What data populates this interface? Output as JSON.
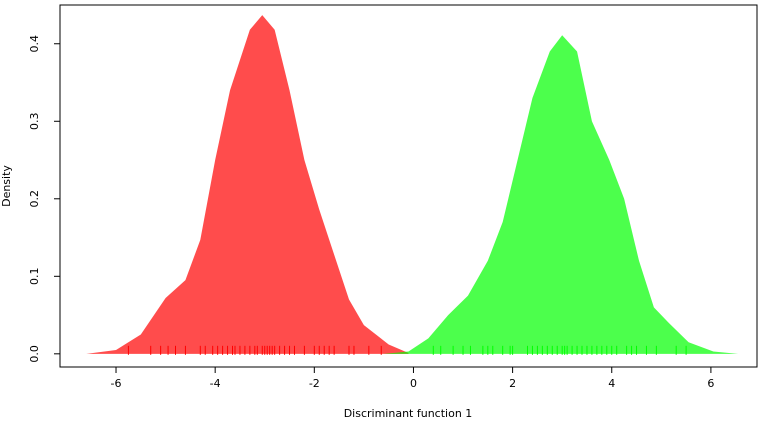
{
  "chart_data": {
    "type": "area",
    "xlabel": "Discriminant function 1",
    "ylabel": "Density",
    "xlim": [
      -7.13,
      6.93
    ],
    "ylim": [
      -0.017,
      0.45
    ],
    "xticks": [
      -6,
      -4,
      -2,
      0,
      2,
      4,
      6
    ],
    "yticks": [
      {
        "value": 0,
        "label": "0.0"
      },
      0.1,
      0.2,
      0.3,
      0.4
    ],
    "opacity": 0.7,
    "series": [
      {
        "color": "#ff0000",
        "x": [
          -6.6,
          -6.0,
          -5.5,
          -5.0,
          -4.6,
          -4.3,
          -4.0,
          -3.7,
          -3.3,
          -3.05,
          -2.8,
          -2.5,
          -2.2,
          -1.9,
          -1.6,
          -1.3,
          -1.0,
          -0.5,
          -0.1
        ],
        "values": [
          0.0,
          0.005,
          0.025,
          0.072,
          0.095,
          0.147,
          0.25,
          0.34,
          0.418,
          0.437,
          0.418,
          0.34,
          0.25,
          0.186,
          0.128,
          0.07,
          0.037,
          0.012,
          0.001
        ],
        "rug": [
          -5.75,
          -5.3,
          -5.1,
          -4.95,
          -4.8,
          -4.6,
          -4.3,
          -4.2,
          -4.05,
          -3.95,
          -3.85,
          -3.75,
          -3.65,
          -3.6,
          -3.5,
          -3.4,
          -3.3,
          -3.2,
          -3.15,
          -3.05,
          -3.0,
          -2.95,
          -2.9,
          -2.85,
          -2.8,
          -2.7,
          -2.6,
          -2.5,
          -2.4,
          -2.2,
          -2.0,
          -1.9,
          -1.8,
          -1.7,
          -1.6,
          -1.3,
          -1.2,
          -0.9,
          -0.65
        ]
      },
      {
        "color": "#00ff00",
        "x": [
          -0.6,
          -0.1,
          0.3,
          0.7,
          1.1,
          1.5,
          1.8,
          2.1,
          2.4,
          2.75,
          3.0,
          3.3,
          3.6,
          3.95,
          4.25,
          4.55,
          4.85,
          5.15,
          5.55,
          6.05,
          6.55
        ],
        "values": [
          0.0,
          0.003,
          0.02,
          0.05,
          0.075,
          0.12,
          0.17,
          0.25,
          0.33,
          0.39,
          0.411,
          0.39,
          0.3,
          0.25,
          0.2,
          0.12,
          0.06,
          0.04,
          0.015,
          0.003,
          0.0
        ],
        "rug": [
          0.4,
          0.55,
          0.8,
          1.0,
          1.15,
          1.4,
          1.5,
          1.6,
          1.8,
          1.95,
          2.0,
          2.3,
          2.4,
          2.5,
          2.6,
          2.7,
          2.8,
          2.9,
          3.0,
          3.05,
          3.1,
          3.2,
          3.3,
          3.4,
          3.5,
          3.6,
          3.7,
          3.8,
          3.9,
          4.0,
          4.1,
          4.3,
          4.4,
          4.5,
          4.7,
          4.9,
          5.3,
          5.5
        ]
      }
    ]
  }
}
